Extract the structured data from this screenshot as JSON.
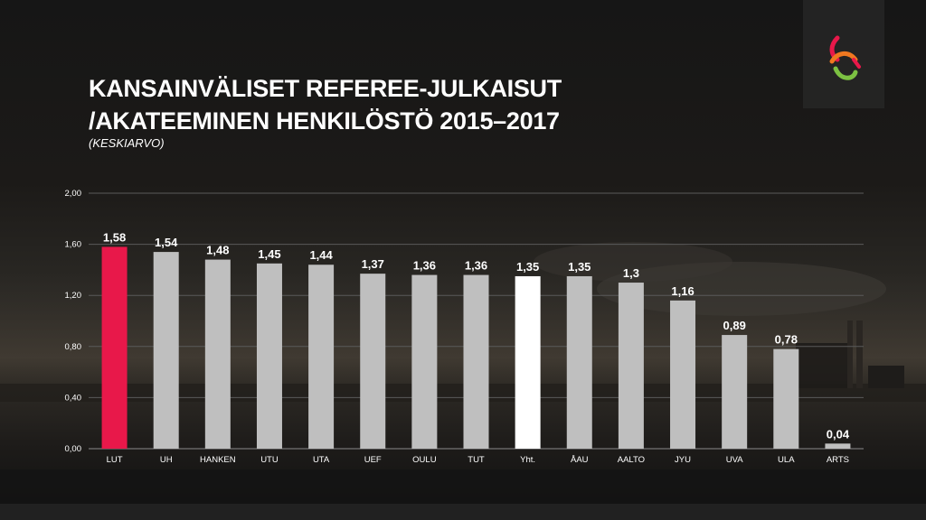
{
  "slide": {
    "title_line1": "KANSAINVÄLISET REFEREE-JULKAISUT",
    "title_line2": "/AKATEEMINEN HENKILÖSTÖ 2015–2017",
    "subtitle": "(KESKIARVO)",
    "logo_icon": "ampersand-logo-icon"
  },
  "chart_data": {
    "type": "bar",
    "categories": [
      "LUT",
      "UH",
      "HANKEN",
      "UTU",
      "UTA",
      "UEF",
      "OULU",
      "TUT",
      "Yht.",
      "ÅAU",
      "AALTO",
      "JYU",
      "UVA",
      "ULA",
      "ARTS"
    ],
    "values": [
      1.58,
      1.54,
      1.48,
      1.45,
      1.44,
      1.37,
      1.36,
      1.36,
      1.35,
      1.35,
      1.3,
      1.16,
      0.89,
      0.78,
      0.04
    ],
    "data_labels": [
      "1,58",
      "1,54",
      "1,48",
      "1,45",
      "1,44",
      "1,37",
      "1,36",
      "1,36",
      "1,35",
      "1,35",
      "1,3",
      "1,16",
      "0,89",
      "0,78",
      "0,04"
    ],
    "yticks": [
      "0,00",
      "0,40",
      "0,80",
      "1,20",
      "1,60",
      "2,00"
    ],
    "ylim": [
      0,
      2
    ],
    "grid": true,
    "colors": {
      "highlight": "#e8184a",
      "total": "#ffffff",
      "default": "#bfbfbf"
    },
    "bar_color_keys": [
      "highlight",
      "default",
      "default",
      "default",
      "default",
      "default",
      "default",
      "default",
      "total",
      "default",
      "default",
      "default",
      "default",
      "default",
      "default"
    ]
  }
}
